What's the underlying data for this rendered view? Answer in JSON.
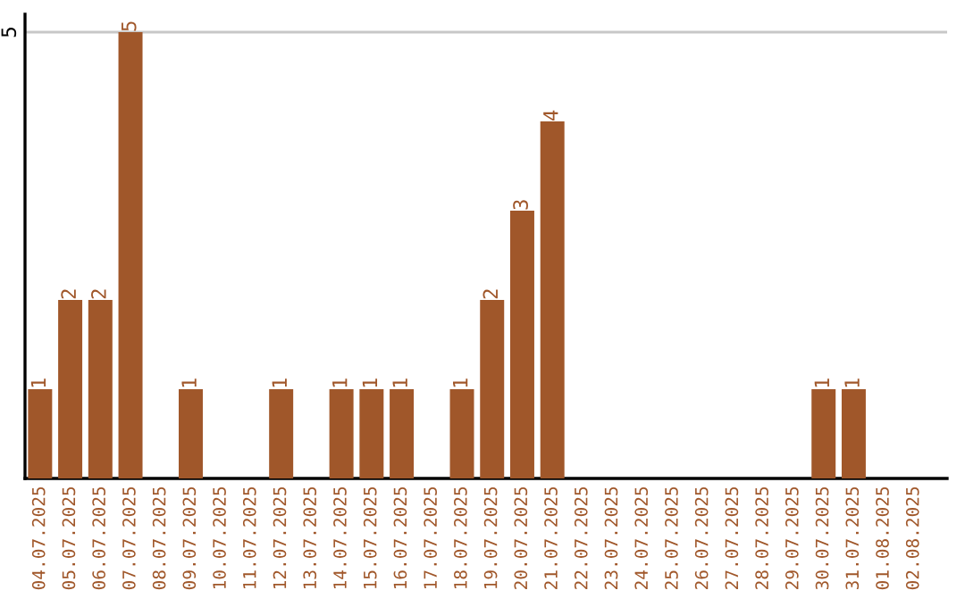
{
  "chart_data": {
    "type": "bar",
    "categories": [
      "04.07.2025",
      "05.07.2025",
      "06.07.2025",
      "07.07.2025",
      "08.07.2025",
      "09.07.2025",
      "10.07.2025",
      "11.07.2025",
      "12.07.2025",
      "13.07.2025",
      "14.07.2025",
      "15.07.2025",
      "16.07.2025",
      "17.07.2025",
      "18.07.2025",
      "19.07.2025",
      "20.07.2025",
      "21.07.2025",
      "22.07.2025",
      "23.07.2025",
      "24.07.2025",
      "25.07.2025",
      "26.07.2025",
      "27.07.2025",
      "28.07.2025",
      "29.07.2025",
      "30.07.2025",
      "31.07.2025",
      "01.08.2025",
      "02.08.2025"
    ],
    "values": [
      1,
      2,
      2,
      5,
      0,
      1,
      0,
      0,
      1,
      0,
      1,
      1,
      1,
      0,
      1,
      2,
      3,
      4,
      0,
      0,
      0,
      0,
      0,
      0,
      0,
      0,
      1,
      1,
      0,
      0
    ],
    "value_labels": [
      "1",
      "2",
      "2",
      "5",
      null,
      "1",
      null,
      null,
      "1",
      null,
      "1",
      "1",
      "1",
      null,
      "1",
      "2",
      "3",
      "4",
      null,
      null,
      null,
      null,
      null,
      null,
      null,
      null,
      "1",
      "1",
      null,
      null
    ],
    "color": "#a0572a",
    "ylim": [
      0,
      5.2
    ],
    "yticks": [
      5
    ],
    "grid": "y",
    "legend": false
  }
}
